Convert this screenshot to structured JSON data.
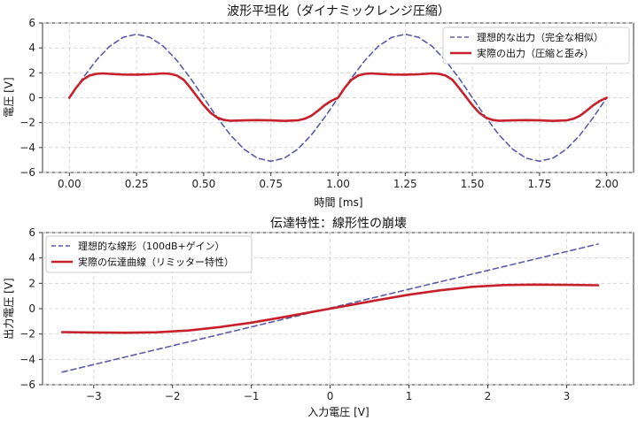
{
  "chart_data": [
    {
      "type": "line",
      "title": "波形平坦化（ダイナミックレンジ圧縮）",
      "xlabel": "時間 [ms]",
      "ylabel": "電圧 [V]",
      "xlim": [
        -0.1,
        2.1
      ],
      "ylim": [
        -6,
        6
      ],
      "xticks": [
        "0.00",
        "0.25",
        "0.50",
        "0.75",
        "1.00",
        "1.25",
        "1.50",
        "1.75",
        "2.00"
      ],
      "yticks": [
        "−6",
        "−4",
        "−2",
        "0",
        "2",
        "4",
        "6"
      ],
      "grid": true,
      "legend_position": "top-right",
      "series": [
        {
          "name": "理想的な出力（完全な相似）",
          "style": "dashed",
          "color": "#5b5ba8",
          "x": [
            0,
            0.05,
            0.1,
            0.15,
            0.2,
            0.25,
            0.3,
            0.35,
            0.4,
            0.45,
            0.5,
            0.55,
            0.6,
            0.65,
            0.7,
            0.75,
            0.8,
            0.85,
            0.9,
            0.95,
            1.0,
            1.05,
            1.1,
            1.15,
            1.2,
            1.25,
            1.3,
            1.35,
            1.4,
            1.45,
            1.5,
            1.55,
            1.6,
            1.65,
            1.7,
            1.75,
            1.8,
            1.85,
            1.9,
            1.95,
            2.0
          ],
          "y": [
            0,
            1.58,
            3.0,
            4.13,
            4.85,
            5.1,
            4.85,
            4.13,
            3.0,
            1.58,
            0,
            -1.58,
            -3.0,
            -4.13,
            -4.85,
            -5.1,
            -4.85,
            -4.13,
            -3.0,
            -1.58,
            0,
            1.58,
            3.0,
            4.13,
            4.85,
            5.1,
            4.85,
            4.13,
            3.0,
            1.58,
            0,
            -1.58,
            -3.0,
            -4.13,
            -4.85,
            -5.1,
            -4.85,
            -4.13,
            -3.0,
            -1.58,
            0
          ]
        },
        {
          "name": "実際の出力（圧縮と歪み）",
          "style": "solid",
          "color": "#c8202a",
          "x": [
            0,
            0.025,
            0.05,
            0.075,
            0.1,
            0.125,
            0.15,
            0.2,
            0.25,
            0.3,
            0.35,
            0.375,
            0.4,
            0.425,
            0.45,
            0.475,
            0.5,
            0.525,
            0.55,
            0.575,
            0.6,
            0.65,
            0.7,
            0.75,
            0.8,
            0.85,
            0.875,
            0.9,
            0.925,
            0.95,
            0.975,
            1.0,
            1.025,
            1.05,
            1.075,
            1.1,
            1.125,
            1.15,
            1.2,
            1.25,
            1.3,
            1.35,
            1.375,
            1.4,
            1.425,
            1.45,
            1.475,
            1.5,
            1.525,
            1.55,
            1.575,
            1.6,
            1.65,
            1.7,
            1.75,
            1.8,
            1.85,
            1.875,
            1.9,
            1.925,
            1.95,
            1.975,
            2.0
          ],
          "y": [
            0,
            0.8,
            1.45,
            1.78,
            1.92,
            1.95,
            1.92,
            1.86,
            1.85,
            1.88,
            1.95,
            1.92,
            1.78,
            1.45,
            0.8,
            0.1,
            -0.6,
            -1.2,
            -1.6,
            -1.78,
            -1.85,
            -1.82,
            -1.8,
            -1.82,
            -1.86,
            -1.82,
            -1.7,
            -1.45,
            -1.05,
            -0.6,
            -0.25,
            0,
            0.8,
            1.45,
            1.78,
            1.92,
            1.95,
            1.92,
            1.86,
            1.85,
            1.88,
            1.95,
            1.92,
            1.78,
            1.45,
            0.8,
            0.1,
            -0.6,
            -1.2,
            -1.6,
            -1.78,
            -1.85,
            -1.82,
            -1.8,
            -1.82,
            -1.86,
            -1.82,
            -1.7,
            -1.45,
            -1.05,
            -0.6,
            -0.25,
            0
          ]
        }
      ]
    },
    {
      "type": "line",
      "title": "伝達特性：線形性の崩壊",
      "xlabel": "入力電圧 [V]",
      "ylabel": "出力電圧 [V]",
      "xlim": [
        -3.65,
        3.85
      ],
      "ylim": [
        -6,
        6
      ],
      "xticks": [
        "−3",
        "−2",
        "−1",
        "0",
        "1",
        "2",
        "3"
      ],
      "yticks": [
        "−6",
        "−4",
        "−2",
        "0",
        "2",
        "4",
        "6"
      ],
      "grid": true,
      "legend_position": "top-left",
      "series": [
        {
          "name": "理想的な線形（100dB+ゲイン）",
          "style": "dashed",
          "color": "#5b5ba8",
          "x": [
            -3.4,
            3.4
          ],
          "y": [
            -5.0,
            5.1
          ]
        },
        {
          "name": "実際の伝達曲線（リミッター特性）",
          "style": "solid",
          "color": "#c8202a",
          "x": [
            -3.4,
            -3.0,
            -2.6,
            -2.2,
            -1.8,
            -1.4,
            -1.0,
            -0.6,
            -0.2,
            0,
            0.2,
            0.6,
            1.0,
            1.4,
            1.8,
            2.2,
            2.6,
            3.0,
            3.4
          ],
          "y": [
            -1.85,
            -1.88,
            -1.9,
            -1.86,
            -1.72,
            -1.45,
            -1.1,
            -0.68,
            -0.22,
            0,
            0.22,
            0.68,
            1.1,
            1.45,
            1.72,
            1.86,
            1.9,
            1.88,
            1.85
          ]
        }
      ]
    }
  ]
}
